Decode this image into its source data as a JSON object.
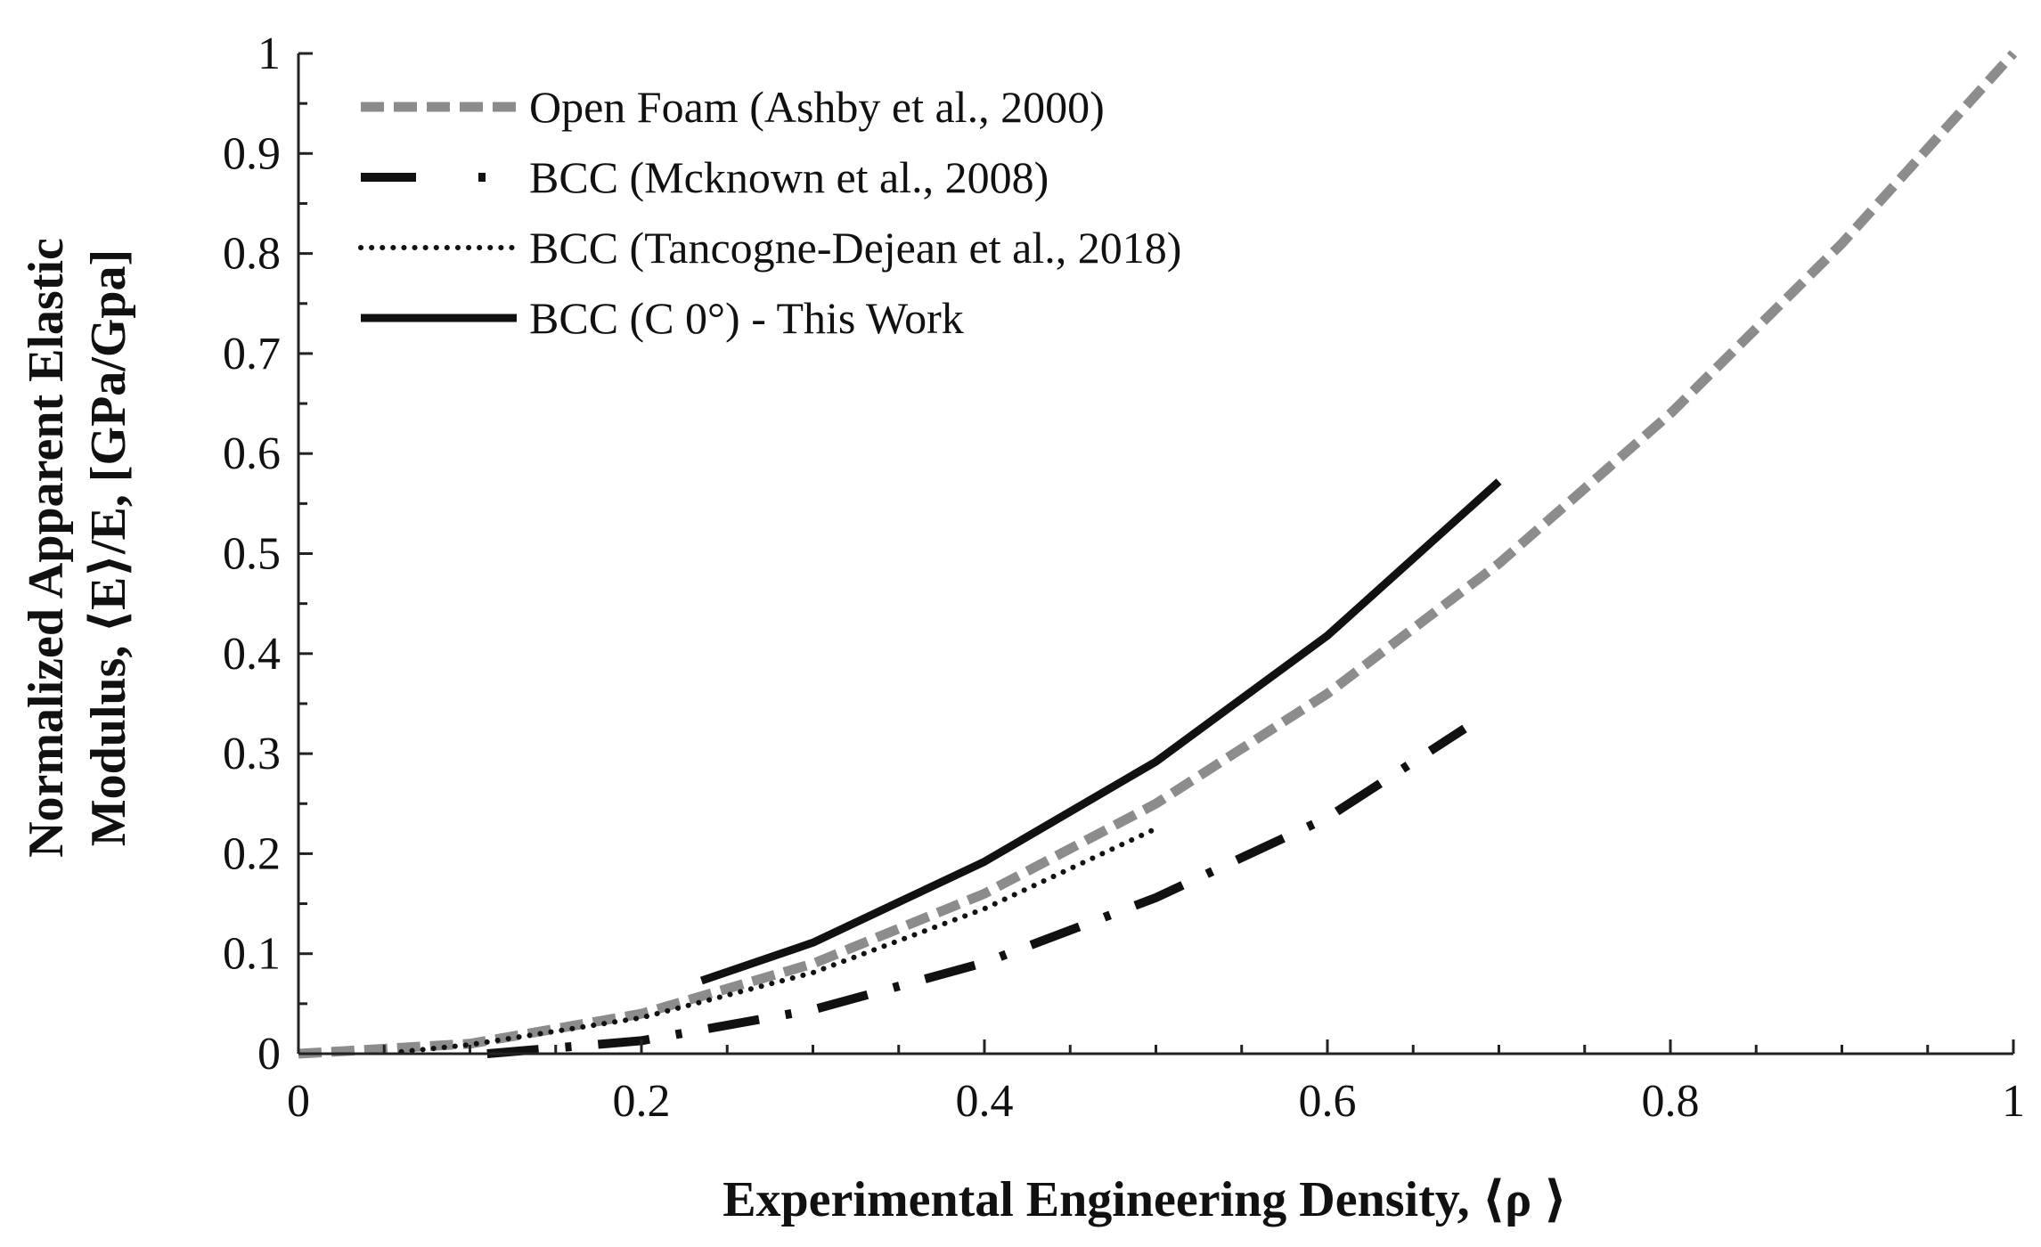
{
  "chart_data": {
    "type": "line",
    "title": "",
    "xlabel": "Experimental Engineering Density, ⟨ρ  ⟩",
    "ylabel_lines": [
      "Normalized Apparent Elastic",
      "Modulus, ⟨E⟩/E, [GPa/Gpa]"
    ],
    "xlim": [
      0,
      1
    ],
    "ylim": [
      0,
      1
    ],
    "x_ticks": [
      "0",
      "0.2",
      "0.4",
      "0.6",
      "0.8",
      "1"
    ],
    "y_ticks": [
      "0",
      "0.1",
      "0.2",
      "0.3",
      "0.4",
      "0.5",
      "0.6",
      "0.7",
      "0.8",
      "0.9",
      "1"
    ],
    "grid": false,
    "legend_position": "top-left",
    "series": [
      {
        "name": "Open Foam (Ashby  et al., 2000)",
        "style": "dashed",
        "color": "#8c8c8c",
        "x": [
          0,
          0.1,
          0.2,
          0.3,
          0.4,
          0.5,
          0.6,
          0.7,
          0.8,
          0.9,
          1.0
        ],
        "y": [
          0,
          0.01,
          0.04,
          0.09,
          0.16,
          0.25,
          0.36,
          0.49,
          0.64,
          0.81,
          1.0
        ]
      },
      {
        "name": "BCC (Mcknown et al., 2008)",
        "style": "dash-dot",
        "color": "#111111",
        "x": [
          0.11,
          0.2,
          0.3,
          0.4,
          0.5,
          0.6,
          0.68
        ],
        "y": [
          0.0,
          0.013,
          0.044,
          0.091,
          0.156,
          0.236,
          0.325
        ]
      },
      {
        "name": "BCC (Tancogne-Dejean et al., 2018)",
        "style": "dotted",
        "color": "#111111",
        "x": [
          0.06,
          0.1,
          0.2,
          0.3,
          0.4,
          0.5
        ],
        "y": [
          0.002,
          0.009,
          0.036,
          0.081,
          0.145,
          0.225
        ]
      },
      {
        "name": "BCC (C 0°) - This Work",
        "style": "solid",
        "color": "#111111",
        "x": [
          0.235,
          0.3,
          0.4,
          0.5,
          0.6,
          0.7
        ],
        "y": [
          0.073,
          0.111,
          0.192,
          0.292,
          0.418,
          0.572
        ]
      }
    ]
  }
}
